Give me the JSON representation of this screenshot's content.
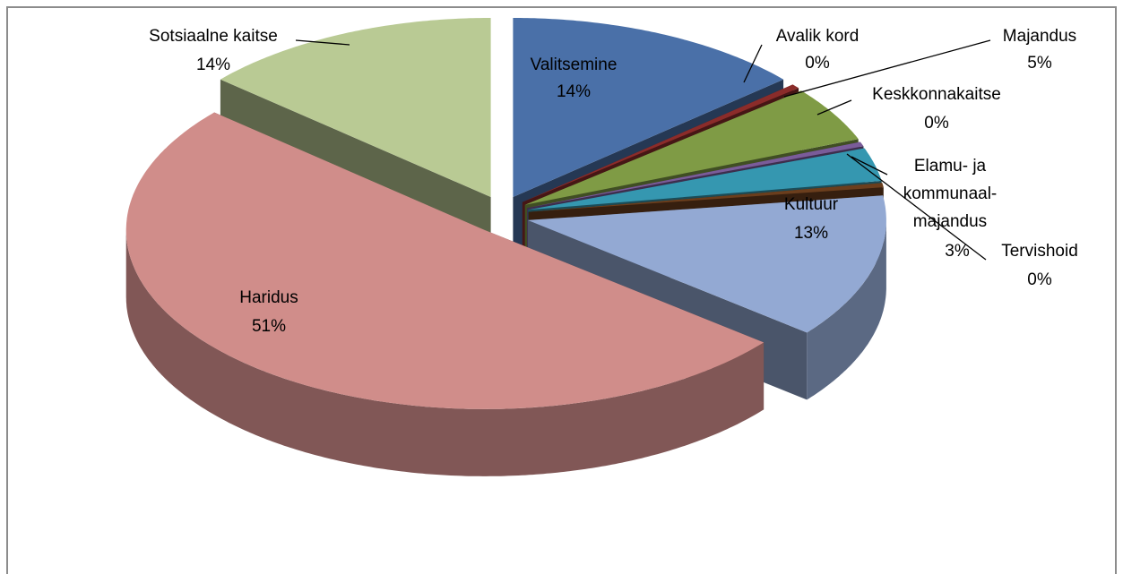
{
  "chart_data": {
    "type": "pie",
    "categories": [
      "Valitsemine",
      "Avalik kord",
      "Majandus",
      "Keskkonnakaitse",
      "Elamu- ja kommunaal-majandus",
      "Tervishoid",
      "Kultuur",
      "Haridus",
      "Sotsiaalne kaitse"
    ],
    "values": [
      13.6,
      0.4,
      5,
      0.4,
      3,
      0.4,
      13,
      50.6,
      13.6
    ],
    "value_labels": [
      "14%",
      "0%",
      "5%",
      "0%",
      "3%",
      "0%",
      "13%",
      "51%",
      "14%"
    ],
    "colors": [
      "#4a70a8",
      "#8b2c2a",
      "#7f9b45",
      "#7a5c99",
      "#3597b0",
      "#6b3e1d",
      "#93a9d3",
      "#d08d8a",
      "#b9ca94"
    ]
  }
}
